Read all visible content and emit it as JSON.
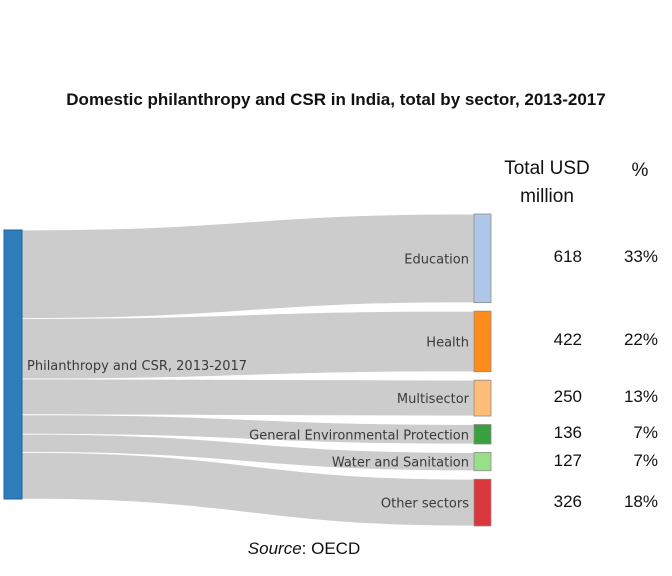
{
  "chart_data": {
    "type": "sankey",
    "title": "Domestic philanthropy and CSR in India, total by sector, 2013-2017",
    "source_label": "Source",
    "source_value": ": OECD",
    "column_headers": {
      "total": "Total USD million",
      "percent": "%"
    },
    "source_node": {
      "label": "Philanthropy and CSR, 2013-2017",
      "color": "#2e7ebc"
    },
    "link_color": "#cccccc",
    "targets": [
      {
        "label": "Education",
        "value": 618,
        "percent": "33%",
        "color": "#aec7e8"
      },
      {
        "label": "Health",
        "value": 422,
        "percent": "22%",
        "color": "#ff8c1a"
      },
      {
        "label": "Multisector",
        "value": 250,
        "percent": "13%",
        "color": "#ffbb78"
      },
      {
        "label": "General Environmental Protection",
        "value": 136,
        "percent": "7%",
        "color": "#3aa040"
      },
      {
        "label": "Water and Sanitation",
        "value": 127,
        "percent": "7%",
        "color": "#98df8a"
      },
      {
        "label": "Other sectors",
        "value": 326,
        "percent": "18%",
        "color": "#d9363e"
      }
    ]
  }
}
